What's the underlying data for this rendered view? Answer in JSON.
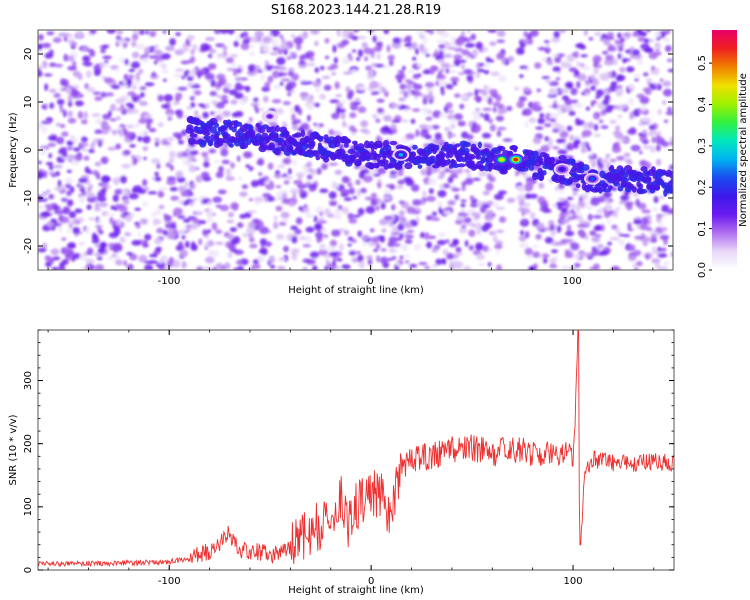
{
  "figure_title": "S168.2023.144.21.28.R19",
  "chart_data": [
    {
      "type": "heatmap",
      "title": "S168.2023.144.21.28.R19",
      "xlabel": "Height of straight line (km)",
      "ylabel": "Frequency (Hz)",
      "xlim": [
        -165,
        150
      ],
      "ylim": [
        -25,
        25
      ],
      "xticks": [
        -100,
        0,
        100
      ],
      "yticks": [
        -20,
        -10,
        0,
        10,
        20
      ],
      "colorbar": {
        "label": "Normalized spectral amplitude",
        "range": [
          0,
          0.58
        ],
        "ticks": [
          0.0,
          0.1,
          0.2,
          0.3,
          0.4,
          0.5
        ],
        "colors": [
          "#ffffff",
          "#e8d8f8",
          "#b070f0",
          "#6a1bf0",
          "#3c18e8",
          "#1a4cf0",
          "#00b4f0",
          "#00e8c0",
          "#30f040",
          "#a0f000",
          "#f0e000",
          "#f08000",
          "#f02020",
          "#e8006a"
        ]
      },
      "signal_ridge": {
        "x": [
          -90,
          -60,
          -30,
          0,
          15,
          30,
          50,
          65,
          72,
          80,
          95,
          110,
          130,
          150
        ],
        "y": [
          4,
          3,
          1,
          -1,
          -1,
          -1,
          -1,
          -2,
          -2,
          -3,
          -4,
          -6,
          -6,
          -7
        ]
      },
      "hot_spots": [
        {
          "x": 15,
          "y": -1,
          "value": 0.25
        },
        {
          "x": 65,
          "y": -2,
          "value": 0.45
        },
        {
          "x": 72,
          "y": -2,
          "value": 0.52
        },
        {
          "x": 95,
          "y": -4,
          "value": 0.18
        },
        {
          "x": 110,
          "y": -6,
          "value": 0.22
        },
        {
          "x": -50,
          "y": 7,
          "value": 0.12
        }
      ],
      "low_amplitude_band": {
        "x": [
          66,
          74
        ]
      }
    },
    {
      "type": "line",
      "xlabel": "Height of straight line (km)",
      "ylabel": "SNR (10 * v/v)",
      "xlim": [
        -165,
        150
      ],
      "ylim": [
        0,
        380
      ],
      "xticks": [
        -100,
        0,
        100
      ],
      "yticks": [
        0,
        100,
        200,
        300
      ],
      "series_color": "#ee3030",
      "series": [
        {
          "x": [
            -165,
            -140,
            -120,
            -100,
            -90,
            -80,
            -75,
            -71,
            -65,
            -55,
            -48,
            -40,
            -32,
            -25,
            -18,
            -15,
            -12,
            -8,
            -5,
            0,
            5,
            8,
            10,
            12,
            15,
            20,
            30,
            40,
            50,
            60,
            70,
            80,
            90,
            95,
            98,
            100,
            101,
            102,
            103,
            104,
            106,
            110,
            120,
            130,
            140,
            150
          ],
          "y": [
            10,
            10,
            11,
            13,
            18,
            30,
            40,
            60,
            32,
            28,
            22,
            38,
            60,
            70,
            85,
            120,
            70,
            100,
            105,
            120,
            125,
            100,
            70,
            130,
            160,
            175,
            180,
            190,
            195,
            185,
            190,
            185,
            180,
            178,
            200,
            170,
            240,
            360,
            100,
            55,
            160,
            175,
            170,
            168,
            172,
            170
          ]
        }
      ],
      "spike": {
        "x": 102.5,
        "peak": 380,
        "dip": 40
      }
    }
  ]
}
